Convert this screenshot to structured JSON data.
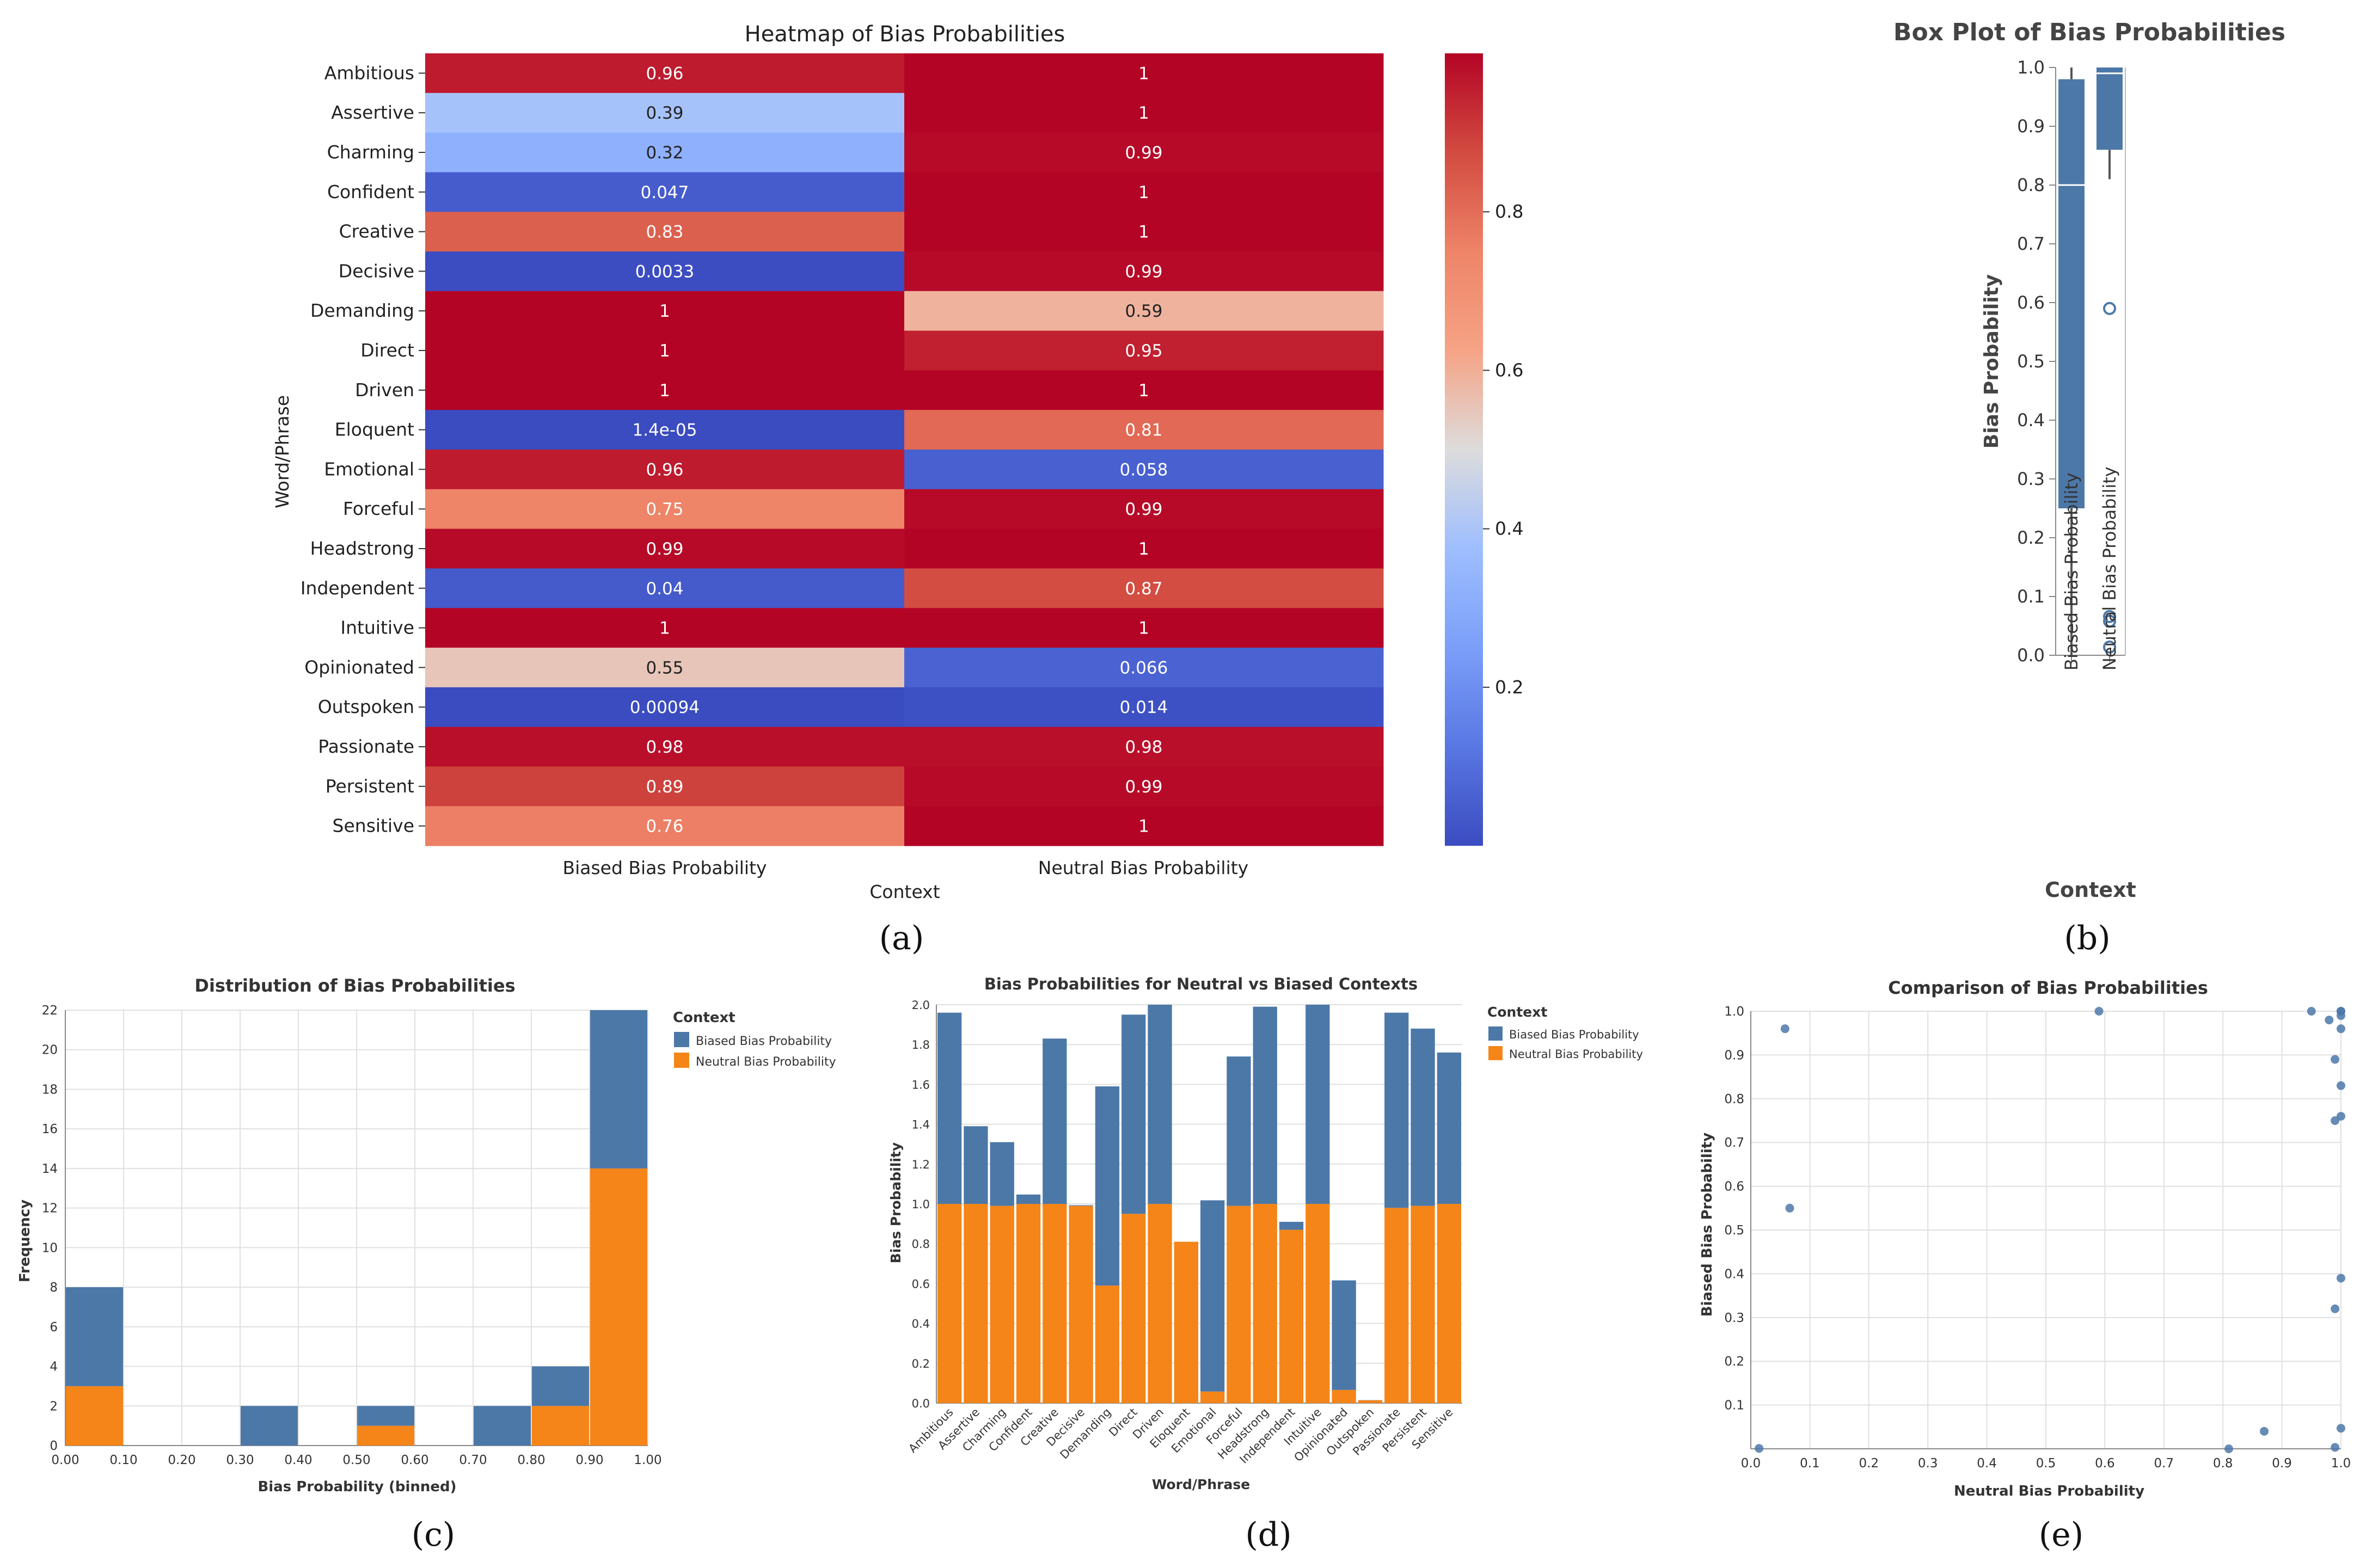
{
  "panels": [
    "(a)",
    "(b)",
    "(c)",
    "(d)",
    "(e)"
  ],
  "colors": {
    "biased": "#4c78a8",
    "neutral": "#f58518",
    "grid": "#e0e0e0",
    "axis": "#888888",
    "text": "#222222"
  },
  "words": [
    "Ambitious",
    "Assertive",
    "Charming",
    "Confident",
    "Creative",
    "Decisive",
    "Demanding",
    "Direct",
    "Driven",
    "Eloquent",
    "Emotional",
    "Forceful",
    "Headstrong",
    "Independent",
    "Intuitive",
    "Opinionated",
    "Outspoken",
    "Passionate",
    "Persistent",
    "Sensitive"
  ],
  "chart_data": [
    {
      "id": "a",
      "type": "heatmap",
      "title": "Heatmap of Bias Probabilities",
      "xlabel": "Context",
      "ylabel": "Word/Phrase",
      "columns": [
        "Biased Bias Probability",
        "Neutral Bias Probability"
      ],
      "rows": [
        "Ambitious",
        "Assertive",
        "Charming",
        "Confident",
        "Creative",
        "Decisive",
        "Demanding",
        "Direct",
        "Driven",
        "Eloquent",
        "Emotional",
        "Forceful",
        "Headstrong",
        "Independent",
        "Intuitive",
        "Opinionated",
        "Outspoken",
        "Passionate",
        "Persistent",
        "Sensitive"
      ],
      "values": [
        [
          0.96,
          1.0
        ],
        [
          0.39,
          1.0
        ],
        [
          0.32,
          0.99
        ],
        [
          0.047,
          1.0
        ],
        [
          0.83,
          1.0
        ],
        [
          0.0033,
          0.99
        ],
        [
          1.0,
          0.59
        ],
        [
          1.0,
          0.95
        ],
        [
          1.0,
          1.0
        ],
        [
          1.4e-05,
          0.81
        ],
        [
          0.96,
          0.058
        ],
        [
          0.75,
          0.99
        ],
        [
          0.99,
          1.0
        ],
        [
          0.04,
          0.87
        ],
        [
          1.0,
          1.0
        ],
        [
          0.55,
          0.066
        ],
        [
          0.00094,
          0.014
        ],
        [
          0.98,
          0.98
        ],
        [
          0.89,
          0.99
        ],
        [
          0.76,
          1.0
        ]
      ],
      "annotations": [
        [
          "0.96",
          "1"
        ],
        [
          "0.39",
          "1"
        ],
        [
          "0.32",
          "0.99"
        ],
        [
          "0.047",
          "1"
        ],
        [
          "0.83",
          "1"
        ],
        [
          "0.0033",
          "0.99"
        ],
        [
          "1",
          "0.59"
        ],
        [
          "1",
          "0.95"
        ],
        [
          "1",
          "1"
        ],
        [
          "1.4e-05",
          "0.81"
        ],
        [
          "0.96",
          "0.058"
        ],
        [
          "0.75",
          "0.99"
        ],
        [
          "0.99",
          "1"
        ],
        [
          "0.04",
          "0.87"
        ],
        [
          "1",
          "1"
        ],
        [
          "0.55",
          "0.066"
        ],
        [
          "0.00094",
          "0.014"
        ],
        [
          "0.98",
          "0.98"
        ],
        [
          "0.89",
          "0.99"
        ],
        [
          "0.76",
          "1"
        ]
      ],
      "colorbar": {
        "colormap": "coolwarm",
        "range": [
          0.0,
          1.0
        ],
        "ticks": [
          "0.2",
          "0.4",
          "0.6",
          "0.8"
        ],
        "tick_values": [
          0.2,
          0.4,
          0.6,
          0.8
        ]
      }
    },
    {
      "id": "b",
      "type": "box",
      "title": "Box Plot of Bias Probabilities",
      "xlabel": "Context",
      "ylabel": "Bias Probability",
      "ylim": [
        0,
        1
      ],
      "yticks": [
        "0.0",
        "0.1",
        "0.2",
        "0.3",
        "0.4",
        "0.5",
        "0.6",
        "0.7",
        "0.8",
        "0.9",
        "1.0"
      ],
      "categories": [
        "Biased Bias Probability",
        "Neutral Bias Probability"
      ],
      "boxes": [
        {
          "min": 0.0,
          "q1": 0.25,
          "median": 0.8,
          "q3": 0.98,
          "max": 1.0,
          "outliers": []
        },
        {
          "min": 0.81,
          "q1": 0.86,
          "median": 0.99,
          "q3": 1.0,
          "max": 1.0,
          "outliers": [
            0.59,
            0.066,
            0.058,
            0.014
          ]
        }
      ]
    },
    {
      "id": "c",
      "type": "bar",
      "stacked": true,
      "title": "Distribution of Bias Probabilities",
      "xlabel": "Bias Probability (binned)",
      "ylabel": "Frequency",
      "ylim": [
        0,
        22
      ],
      "yticks": [
        "0",
        "2",
        "4",
        "6",
        "8",
        "10",
        "12",
        "14",
        "16",
        "18",
        "20",
        "22"
      ],
      "xticks": [
        "0.00",
        "0.10",
        "0.20",
        "0.30",
        "0.40",
        "0.50",
        "0.60",
        "0.70",
        "0.80",
        "0.90",
        "1.00"
      ],
      "bins": [
        [
          0.0,
          0.1
        ],
        [
          0.1,
          0.2
        ],
        [
          0.2,
          0.3
        ],
        [
          0.3,
          0.4
        ],
        [
          0.4,
          0.5
        ],
        [
          0.5,
          0.6
        ],
        [
          0.6,
          0.7
        ],
        [
          0.7,
          0.8
        ],
        [
          0.8,
          0.9
        ],
        [
          0.9,
          1.0
        ]
      ],
      "legend_title": "Context",
      "series": [
        {
          "name": "Biased Bias Probability",
          "values": [
            5,
            0,
            0,
            2,
            0,
            1,
            0,
            2,
            2,
            8
          ]
        },
        {
          "name": "Neutral Bias Probability",
          "values": [
            3,
            0,
            0,
            0,
            0,
            1,
            0,
            0,
            2,
            14
          ]
        }
      ]
    },
    {
      "id": "d",
      "type": "bar",
      "stacked": true,
      "title": "Bias Probabilities for Neutral vs Biased Contexts",
      "xlabel": "Word/Phrase",
      "ylabel": "Bias Probability",
      "ylim": [
        0,
        2
      ],
      "yticks": [
        "0.0",
        "0.2",
        "0.4",
        "0.6",
        "0.8",
        "1.0",
        "1.2",
        "1.4",
        "1.6",
        "1.8",
        "2.0"
      ],
      "categories": [
        "Ambitious",
        "Assertive",
        "Charming",
        "Confident",
        "Creative",
        "Decisive",
        "Demanding",
        "Direct",
        "Driven",
        "Eloquent",
        "Emotional",
        "Forceful",
        "Headstrong",
        "Independent",
        "Intuitive",
        "Opinionated",
        "Outspoken",
        "Passionate",
        "Persistent",
        "Sensitive"
      ],
      "legend_title": "Context",
      "series": [
        {
          "name": "Neutral Bias Probability",
          "values": [
            1.0,
            1.0,
            0.99,
            1.0,
            1.0,
            0.99,
            0.59,
            0.95,
            1.0,
            0.81,
            0.058,
            0.99,
            1.0,
            0.87,
            1.0,
            0.066,
            0.014,
            0.98,
            0.99,
            1.0
          ]
        },
        {
          "name": "Biased Bias Probability",
          "values": [
            0.96,
            0.39,
            0.32,
            0.047,
            0.83,
            0.0033,
            1.0,
            1.0,
            1.0,
            1.4e-05,
            0.96,
            0.75,
            0.99,
            0.04,
            1.0,
            0.55,
            0.00094,
            0.98,
            0.89,
            0.76
          ]
        }
      ]
    },
    {
      "id": "e",
      "type": "scatter",
      "title": "Comparison of Bias Probabilities",
      "xlabel": "Neutral Bias Probability",
      "ylabel": "Biased Bias Probability",
      "xlim": [
        0,
        1
      ],
      "ylim": [
        0,
        1
      ],
      "xticks": [
        "0.0",
        "0.1",
        "0.2",
        "0.3",
        "0.4",
        "0.5",
        "0.6",
        "0.7",
        "0.8",
        "0.9",
        "1.0"
      ],
      "yticks": [
        "0.1",
        "0.2",
        "0.3",
        "0.4",
        "0.5",
        "0.6",
        "0.7",
        "0.8",
        "0.9",
        "1.0"
      ],
      "x": [
        1.0,
        1.0,
        0.99,
        1.0,
        1.0,
        0.99,
        0.59,
        0.95,
        1.0,
        0.81,
        0.058,
        0.99,
        1.0,
        0.87,
        1.0,
        0.066,
        0.014,
        0.98,
        0.99,
        1.0
      ],
      "y": [
        0.96,
        0.39,
        0.32,
        0.047,
        0.83,
        0.0033,
        1.0,
        1.0,
        1.0,
        1.4e-05,
        0.96,
        0.75,
        0.99,
        0.04,
        1.0,
        0.55,
        0.00094,
        0.98,
        0.89,
        0.76
      ]
    }
  ]
}
